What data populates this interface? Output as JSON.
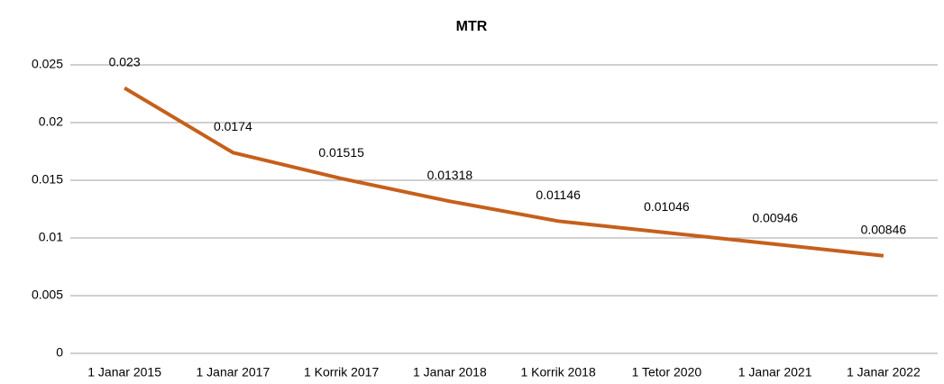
{
  "chart_data": {
    "type": "line",
    "title": "MTR",
    "categories": [
      "1 Janar 2015",
      "1 Janar 2017",
      "1 Korrik 2017",
      "1 Janar 2018",
      "1 Korrik 2018",
      "1 Tetor 2020",
      "1 Janar 2021",
      "1 Janar 2022"
    ],
    "series": [
      {
        "name": "MTR",
        "color": "#c5601c",
        "values": [
          0.023,
          0.0174,
          0.01515,
          0.01318,
          0.01146,
          0.01046,
          0.00946,
          0.00846
        ]
      }
    ],
    "ylim": [
      0,
      0.025
    ],
    "yticks": [
      0,
      0.005,
      0.01,
      0.015,
      0.02,
      0.025
    ],
    "grid": true
  }
}
